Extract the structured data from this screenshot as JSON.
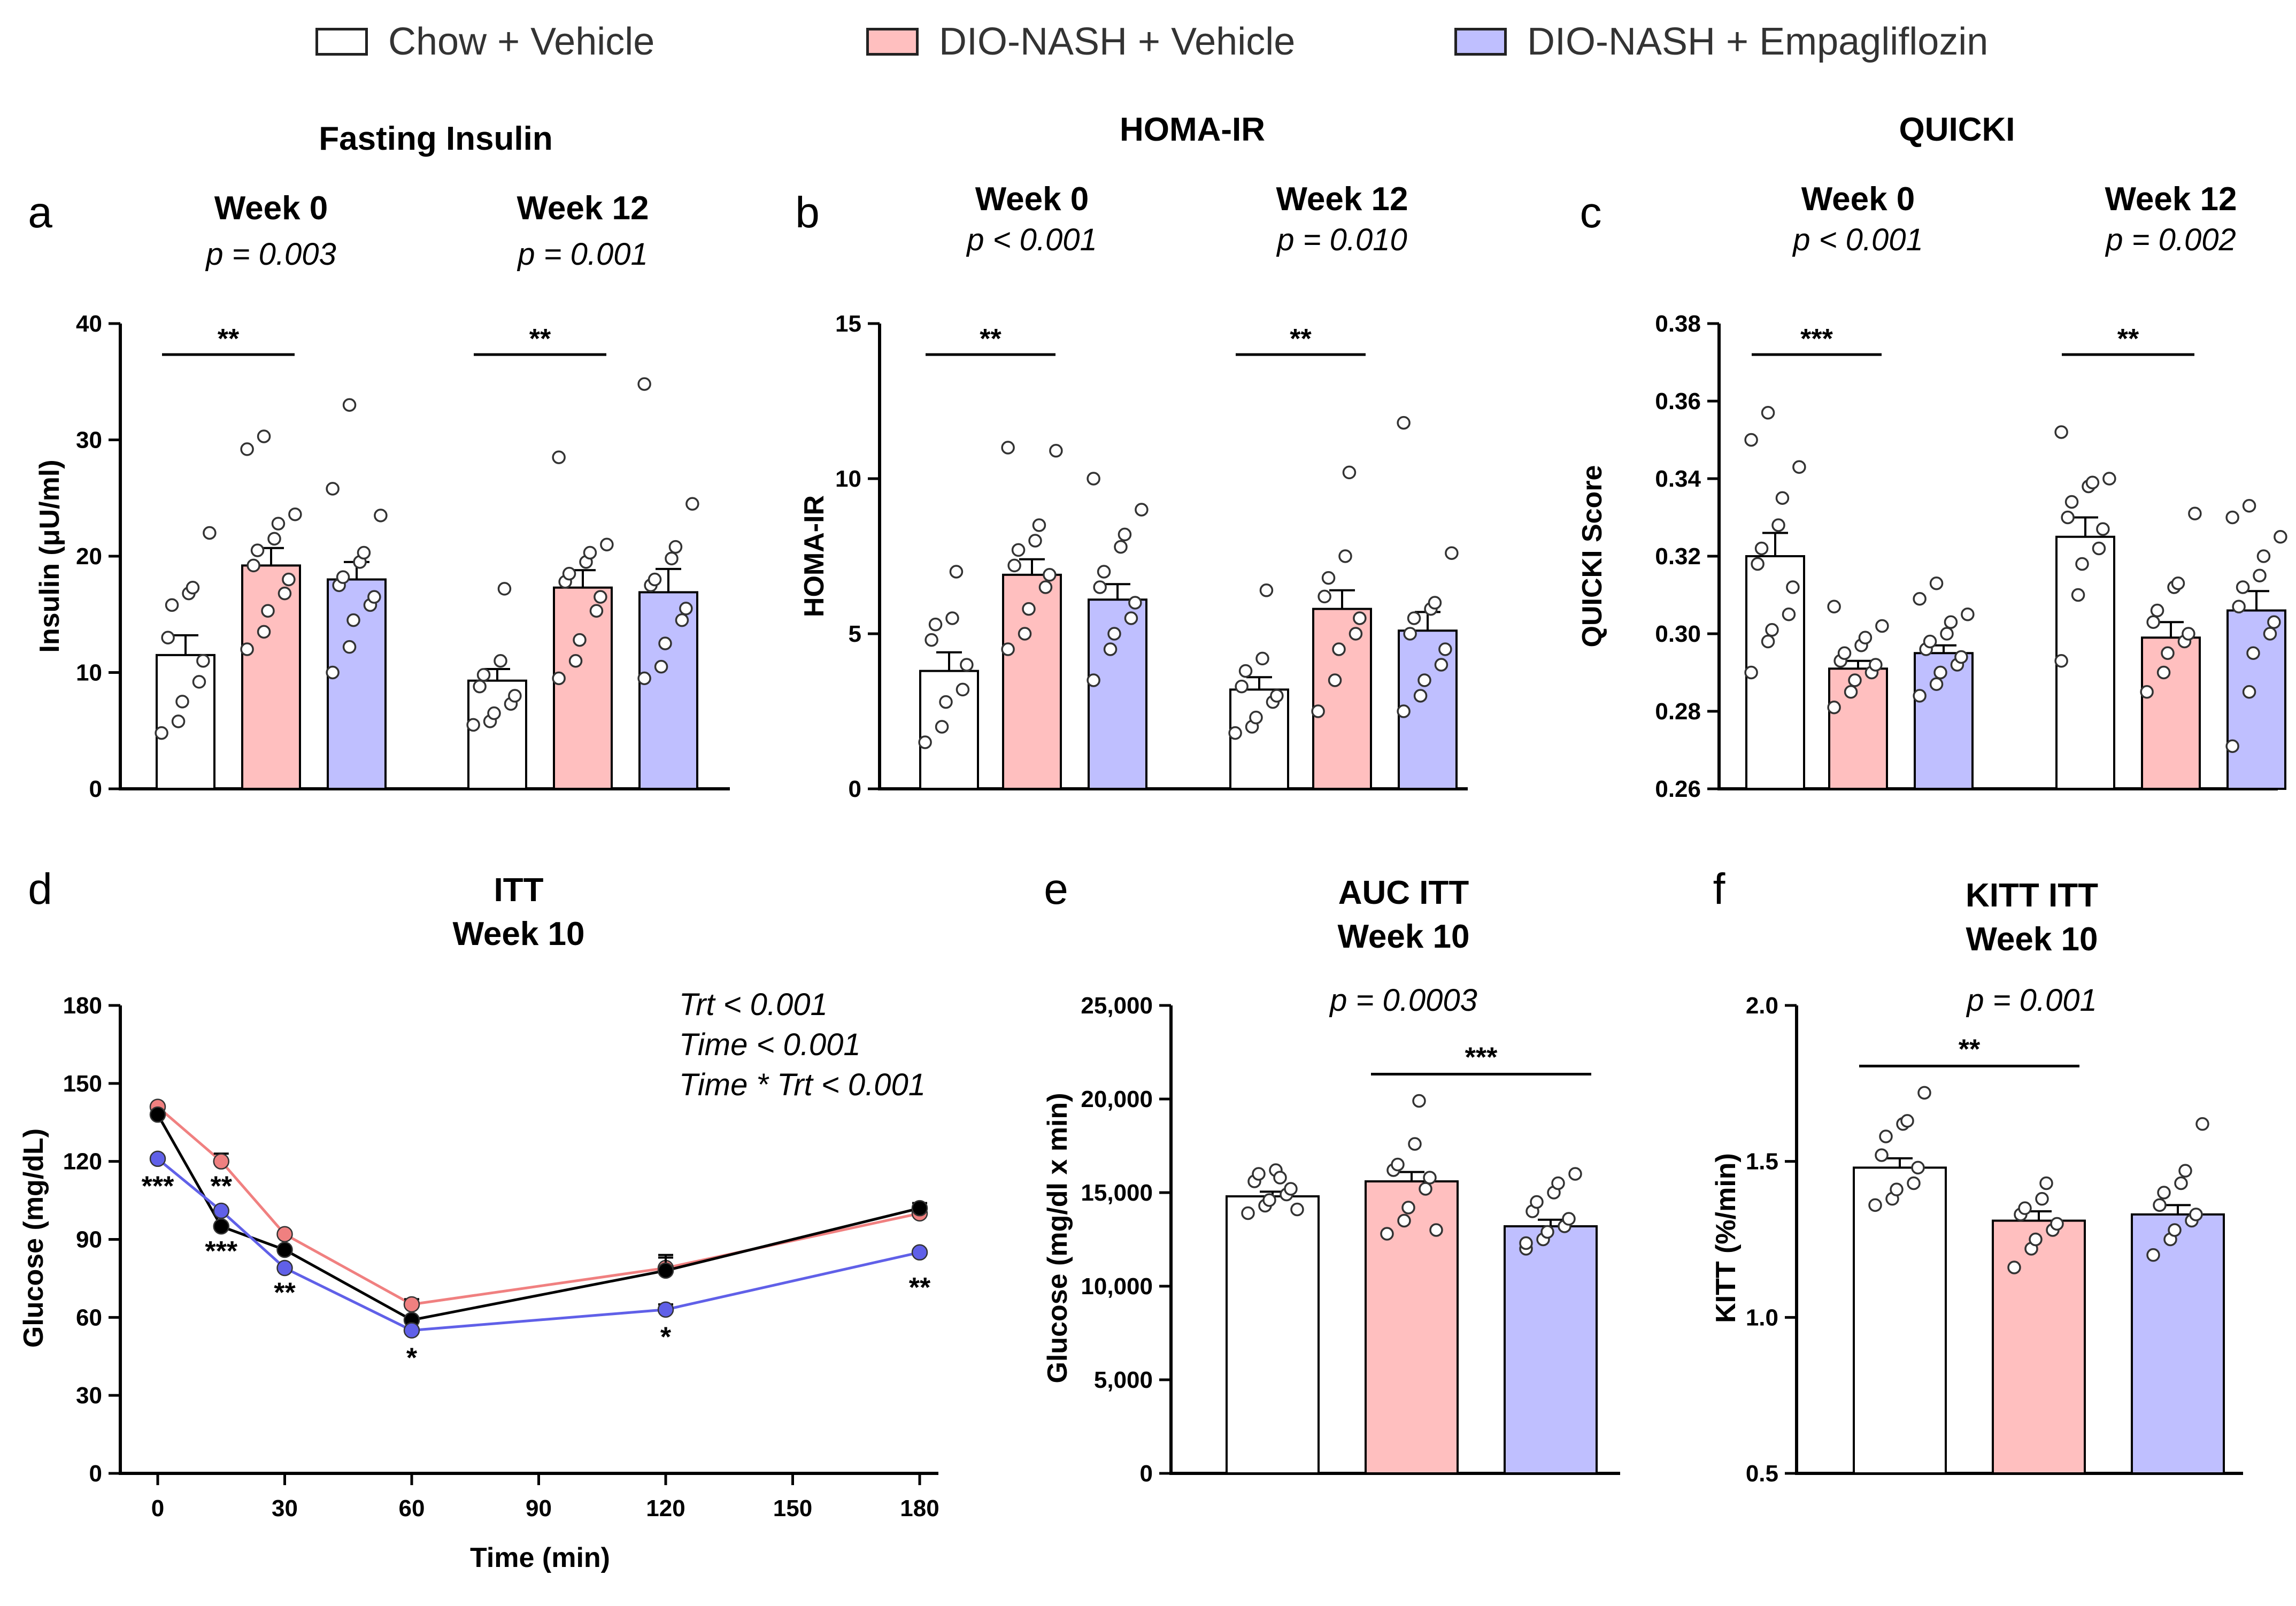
{
  "colors": {
    "chow": "#ffffff",
    "dio": "#ffbfbf",
    "empa": "#bfbfff",
    "chow_line": "#000000",
    "dio_line": "#f08080",
    "empa_line": "#6060e8",
    "ink": "#000000"
  },
  "legend": [
    {
      "label": "Chow + Vehicle",
      "color": "#ffffff"
    },
    {
      "label": "DIO-NASH + Vehicle",
      "color": "#ffbfbf"
    },
    {
      "label": "DIO-NASH + Empagliflozin",
      "color": "#bfbfff"
    }
  ],
  "chart_data": [
    {
      "panel": "a",
      "type": "bar",
      "title": "Fasting Insulin",
      "ylabel": "Insulin (μU/ml)",
      "ylim": [
        0,
        40
      ],
      "yticks": [
        "0",
        "10",
        "20",
        "30",
        "40"
      ],
      "groups": [
        {
          "label": "Week 0",
          "p": "p = 0.003",
          "means": [
            11.5,
            19.2,
            18.0
          ],
          "sems": [
            1.7,
            1.5,
            1.5
          ],
          "points": [
            [
              4.8,
              5.8,
              7.5,
              9.2,
              11.0,
              13.0,
              15.8,
              16.8,
              17.3,
              22.0
            ],
            [
              12.0,
              13.5,
              15.3,
              16.8,
              18.0,
              19.2,
              20.5,
              21.5,
              22.8,
              23.6,
              29.2,
              30.3
            ],
            [
              10.0,
              12.2,
              14.5,
              15.8,
              16.5,
              17.5,
              18.2,
              19.5,
              20.3,
              23.5,
              25.8,
              33.0
            ]
          ],
          "sig": {
            "label": "**",
            "from": 0,
            "to": 1
          }
        },
        {
          "label": "Week 12",
          "p": "p = 0.001",
          "means": [
            9.3,
            17.3,
            16.9
          ],
          "sems": [
            1.0,
            1.5,
            2.0
          ],
          "points": [
            [
              5.5,
              5.8,
              6.5,
              7.3,
              8.0,
              8.8,
              9.8,
              11.0,
              17.2
            ],
            [
              9.5,
              11.0,
              12.8,
              15.3,
              16.5,
              17.8,
              18.5,
              19.5,
              20.3,
              21.0,
              28.5
            ],
            [
              9.5,
              10.5,
              12.5,
              14.5,
              15.5,
              17.5,
              18.0,
              19.8,
              20.8,
              24.5,
              34.8
            ]
          ],
          "sig": {
            "label": "**",
            "from": 0,
            "to": 1
          }
        }
      ]
    },
    {
      "panel": "b",
      "type": "bar",
      "title": "HOMA-IR",
      "ylabel": "HOMA-IR",
      "ylim": [
        0,
        15
      ],
      "yticks": [
        "0",
        "5",
        "10",
        "15"
      ],
      "groups": [
        {
          "label": "Week 0",
          "p": "p < 0.001",
          "means": [
            3.8,
            6.9,
            6.1
          ],
          "sems": [
            0.6,
            0.5,
            0.5
          ],
          "points": [
            [
              1.5,
              2.0,
              2.8,
              3.2,
              4.0,
              4.8,
              5.3,
              5.5,
              7.0
            ],
            [
              4.5,
              5.0,
              5.8,
              6.5,
              6.9,
              7.2,
              7.7,
              8.0,
              8.5,
              10.9,
              11.0
            ],
            [
              3.5,
              4.5,
              5.0,
              5.5,
              6.0,
              6.5,
              7.0,
              7.8,
              8.2,
              9.0,
              10.0
            ]
          ],
          "sig": {
            "label": "**",
            "from": 0,
            "to": 1
          }
        },
        {
          "label": "Week 12",
          "p": "p = 0.010",
          "means": [
            3.2,
            5.8,
            5.1
          ],
          "sems": [
            0.4,
            0.6,
            0.6
          ],
          "points": [
            [
              1.8,
              2.0,
              2.3,
              2.8,
              3.0,
              3.3,
              3.8,
              4.2,
              6.4
            ],
            [
              2.5,
              3.5,
              4.5,
              5.0,
              5.5,
              6.2,
              6.8,
              7.5,
              10.2
            ],
            [
              2.5,
              3.0,
              3.5,
              4.0,
              4.5,
              5.0,
              5.5,
              5.8,
              6.0,
              7.6,
              11.8
            ]
          ],
          "sig": {
            "label": "**",
            "from": 0,
            "to": 1
          }
        }
      ]
    },
    {
      "panel": "c",
      "type": "bar",
      "title": "QUICKI",
      "ylabel": "QUICKI Score",
      "ylim": [
        0.26,
        0.38
      ],
      "yticks": [
        "0.26",
        "0.28",
        "0.30",
        "0.32",
        "0.34",
        "0.36",
        "0.38"
      ],
      "groups": [
        {
          "label": "Week 0",
          "p": "p < 0.001",
          "means": [
            0.32,
            0.291,
            0.295
          ],
          "sems": [
            0.006,
            0.002,
            0.002
          ],
          "points": [
            [
              0.29,
              0.298,
              0.301,
              0.305,
              0.312,
              0.318,
              0.322,
              0.328,
              0.335,
              0.343,
              0.35,
              0.357
            ],
            [
              0.281,
              0.285,
              0.288,
              0.29,
              0.292,
              0.293,
              0.295,
              0.297,
              0.299,
              0.302,
              0.307
            ],
            [
              0.284,
              0.287,
              0.29,
              0.292,
              0.294,
              0.296,
              0.298,
              0.3,
              0.303,
              0.305,
              0.309,
              0.313
            ]
          ],
          "sig": {
            "label": "***",
            "from": 0,
            "to": 1
          }
        },
        {
          "label": "Week 12",
          "p": "p = 0.002",
          "means": [
            0.325,
            0.299,
            0.306
          ],
          "sems": [
            0.005,
            0.004,
            0.005
          ],
          "points": [
            [
              0.293,
              0.31,
              0.318,
              0.322,
              0.327,
              0.33,
              0.334,
              0.338,
              0.339,
              0.34,
              0.352
            ],
            [
              0.285,
              0.29,
              0.295,
              0.298,
              0.3,
              0.303,
              0.306,
              0.312,
              0.313,
              0.331
            ],
            [
              0.271,
              0.285,
              0.295,
              0.3,
              0.303,
              0.307,
              0.312,
              0.315,
              0.32,
              0.325,
              0.33,
              0.333
            ]
          ],
          "sig": {
            "label": "**",
            "from": 0,
            "to": 1
          }
        }
      ]
    },
    {
      "panel": "d",
      "type": "line",
      "title": "ITT\nWeek 10",
      "xlabel": "Time (min)",
      "ylabel": "Glucose (mg/dL)",
      "x": [
        0,
        15,
        30,
        60,
        120,
        180
      ],
      "xlim": [
        -5,
        185
      ],
      "ylim": [
        0,
        180
      ],
      "xticks": [
        "0",
        "30",
        "60",
        "90",
        "120",
        "150",
        "180"
      ],
      "yticks": [
        "0",
        "30",
        "60",
        "90",
        "120",
        "150",
        "180"
      ],
      "series": [
        {
          "name": "DIO-NASH + Vehicle",
          "values": [
            141,
            120,
            92,
            65,
            79,
            100
          ],
          "sems": [
            0,
            3,
            0,
            2,
            5,
            0
          ]
        },
        {
          "name": "Chow + Vehicle",
          "values": [
            138,
            95,
            86,
            59,
            78,
            102
          ],
          "sems": [
            0,
            0,
            0,
            0,
            5,
            2
          ]
        },
        {
          "name": "DIO-NASH + Empagliflozin",
          "values": [
            121,
            101,
            79,
            55,
            63,
            85
          ],
          "sems": [
            0,
            0,
            0,
            0,
            2,
            0
          ]
        }
      ],
      "stats": [
        "Trt < 0.001",
        "Time < 0.001",
        "Time * Trt < 0.001"
      ],
      "annotations": [
        {
          "x": 0,
          "y": 111,
          "label": "***"
        },
        {
          "x": 15,
          "y": 111,
          "label": "**"
        },
        {
          "x": 15,
          "y": 86,
          "label": "***"
        },
        {
          "x": 30,
          "y": 70,
          "label": "**"
        },
        {
          "x": 60,
          "y": 45,
          "label": "*"
        },
        {
          "x": 120,
          "y": 53,
          "label": "*"
        },
        {
          "x": 180,
          "y": 72,
          "label": "**"
        }
      ]
    },
    {
      "panel": "e",
      "type": "bar",
      "title": "AUC ITT\nWeek 10",
      "ylabel": "Glucose (mg/dl x min)",
      "ylim": [
        0,
        25000
      ],
      "yticks": [
        "0",
        "5,000",
        "10,000",
        "15,000",
        "20,000",
        "25,000"
      ],
      "groups": [
        {
          "label": "",
          "p": "p = 0.0003",
          "means": [
            14800,
            15600,
            13200
          ],
          "sems": [
            250,
            500,
            350
          ],
          "points": [
            [
              13900,
              14300,
              14600,
              14900,
              15200,
              15600,
              16000,
              16200,
              15800,
              14100
            ],
            [
              12800,
              13500,
              14200,
              15200,
              15800,
              16200,
              16500,
              17600,
              19900,
              13000
            ],
            [
              12000,
              12500,
              12900,
              13200,
              13600,
              14000,
              14500,
              15000,
              15500,
              16000,
              12300
            ]
          ],
          "sig": {
            "label": "***",
            "from": 1,
            "to": 2
          }
        }
      ]
    },
    {
      "panel": "f",
      "type": "bar",
      "title": "KITT ITT\nWeek 10",
      "ylabel": "KITT (%/min)",
      "ylim": [
        0.5,
        2.0
      ],
      "yticks": [
        "0.5",
        "1.0",
        "1.5",
        "2.0"
      ],
      "groups": [
        {
          "label": "",
          "p": "p = 0.001",
          "means": [
            1.48,
            1.31,
            1.33
          ],
          "sems": [
            0.03,
            0.03,
            0.03
          ],
          "points": [
            [
              1.36,
              1.38,
              1.41,
              1.43,
              1.48,
              1.52,
              1.58,
              1.62,
              1.63,
              1.72
            ],
            [
              1.16,
              1.22,
              1.25,
              1.28,
              1.3,
              1.33,
              1.35,
              1.38,
              1.43
            ],
            [
              1.2,
              1.25,
              1.28,
              1.31,
              1.33,
              1.36,
              1.4,
              1.43,
              1.47,
              1.62
            ]
          ],
          "sig": {
            "label": "**",
            "from": 0,
            "to": 1
          }
        }
      ]
    }
  ]
}
